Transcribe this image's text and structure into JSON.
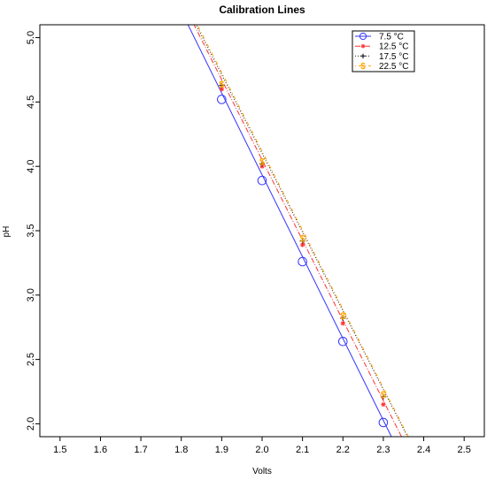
{
  "chart_data": {
    "type": "line",
    "title": "Calibration Lines",
    "xlabel": "Volts",
    "ylabel": "pH",
    "xlim": [
      1.45,
      2.55
    ],
    "ylim": [
      1.9,
      5.1
    ],
    "xticks": [
      "1.5",
      "1.6",
      "1.7",
      "1.8",
      "1.9",
      "2.0",
      "2.1",
      "2.2",
      "2.3",
      "2.4",
      "2.5"
    ],
    "yticks": [
      "2.0",
      "2.5",
      "3.0",
      "3.5",
      "4.0",
      "4.5",
      "5.0"
    ],
    "grid": false,
    "legend_position": "top-right",
    "x": [
      1.9,
      2.0,
      2.1,
      2.2,
      2.3
    ],
    "series": [
      {
        "name": "7.5  °C",
        "color": "#3333ff",
        "dash": "solid",
        "marker": "circle",
        "values": [
          4.52,
          3.89,
          3.26,
          2.64,
          2.01
        ],
        "line": [
          1.815,
          5.11,
          2.32,
          1.9
        ]
      },
      {
        "name": "12.5 °C",
        "color": "#ff3333",
        "dash": "dashdot",
        "marker": "star",
        "values": [
          4.6,
          4.0,
          3.39,
          2.78,
          2.15
        ],
        "line": [
          1.83,
          5.11,
          2.345,
          1.9
        ]
      },
      {
        "name": "17.5 °C",
        "color": "#222222",
        "dash": "dotted",
        "marker": "plus",
        "values": [
          4.63,
          4.02,
          3.42,
          2.82,
          2.21
        ],
        "line": [
          1.835,
          5.11,
          2.36,
          1.9
        ]
      },
      {
        "name": "22.5 °C",
        "color": "#ffa500",
        "dash": "dotdash",
        "marker": "dollar",
        "values": [
          4.64,
          4.04,
          3.44,
          2.84,
          2.23
        ],
        "line": [
          1.838,
          5.11,
          2.362,
          1.9
        ]
      }
    ]
  }
}
